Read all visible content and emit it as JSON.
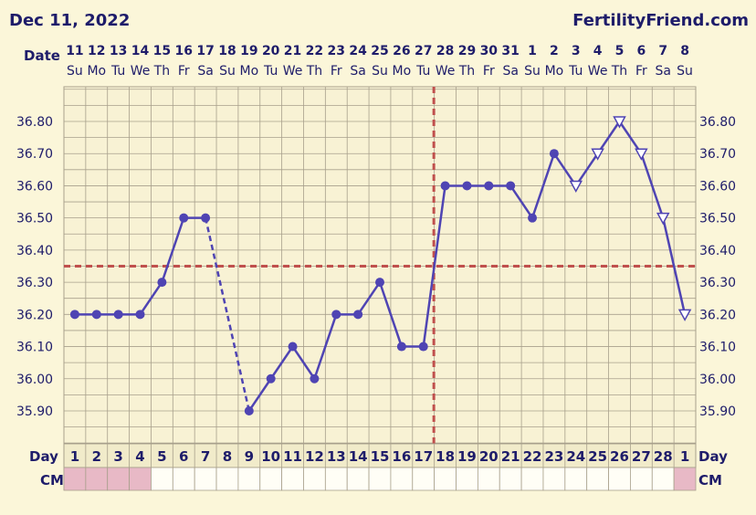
{
  "header": {
    "date": "Dec 11, 2022",
    "site": "FertilityFriend.com"
  },
  "labels": {
    "date_row": "Date",
    "day_row": "Day",
    "cm_row": "CM"
  },
  "colors": {
    "background": "#fbf6d9",
    "grid": "#a8a08c",
    "line": "#4f44b3",
    "coverline": "#c0504d",
    "text": "#1e1c6a",
    "cm_pink": "#e8b9c6"
  },
  "chart_data": {
    "type": "line",
    "title": "",
    "ylim": [
      35.8,
      36.9
    ],
    "y_ticks": [
      "36.80",
      "36.70",
      "36.60",
      "36.50",
      "36.40",
      "36.30",
      "36.20",
      "36.10",
      "36.00",
      "35.90"
    ],
    "dates": [
      "11",
      "12",
      "13",
      "14",
      "15",
      "16",
      "17",
      "18",
      "19",
      "20",
      "21",
      "22",
      "23",
      "24",
      "25",
      "26",
      "27",
      "28",
      "29",
      "30",
      "31",
      "1",
      "2",
      "3",
      "4",
      "5",
      "6",
      "7",
      "8"
    ],
    "weekdays": [
      "Su",
      "Mo",
      "Tu",
      "We",
      "Th",
      "Fr",
      "Sa",
      "Su",
      "Mo",
      "Tu",
      "We",
      "Th",
      "Fr",
      "Sa",
      "Su",
      "Mo",
      "Tu",
      "We",
      "Th",
      "Fr",
      "Sa",
      "Su",
      "Mo",
      "Tu",
      "We",
      "Th",
      "Fr",
      "Sa",
      "Su"
    ],
    "cycle_days": [
      "1",
      "2",
      "3",
      "4",
      "5",
      "6",
      "7",
      "8",
      "9",
      "10",
      "11",
      "12",
      "13",
      "14",
      "15",
      "16",
      "17",
      "18",
      "19",
      "20",
      "21",
      "22",
      "23",
      "24",
      "25",
      "26",
      "27",
      "28",
      "1"
    ],
    "temperatures": [
      36.2,
      36.2,
      36.2,
      36.2,
      36.3,
      36.5,
      36.5,
      null,
      35.9,
      36.0,
      36.1,
      36.0,
      36.2,
      36.2,
      36.3,
      36.1,
      36.1,
      36.6,
      36.6,
      36.6,
      36.6,
      36.5,
      36.7,
      36.6,
      36.7,
      36.8,
      36.7,
      36.5,
      36.2
    ],
    "marker_types": [
      "dot",
      "dot",
      "dot",
      "dot",
      "dot",
      "dot",
      "dot",
      "none",
      "dot",
      "dot",
      "dot",
      "dot",
      "dot",
      "dot",
      "dot",
      "dot",
      "dot",
      "dot",
      "dot",
      "dot",
      "dot",
      "dot",
      "dot",
      "tri",
      "tri",
      "tri",
      "tri",
      "tri",
      "tri"
    ],
    "dashed_segments": [
      [
        6,
        8
      ]
    ],
    "coverline": 36.35,
    "ovulation_day_index": 16,
    "cm_highlight": [
      1,
      1,
      1,
      1,
      0,
      0,
      0,
      0,
      0,
      0,
      0,
      0,
      0,
      0,
      0,
      0,
      0,
      0,
      0,
      0,
      0,
      0,
      0,
      0,
      0,
      0,
      0,
      0,
      1
    ]
  }
}
